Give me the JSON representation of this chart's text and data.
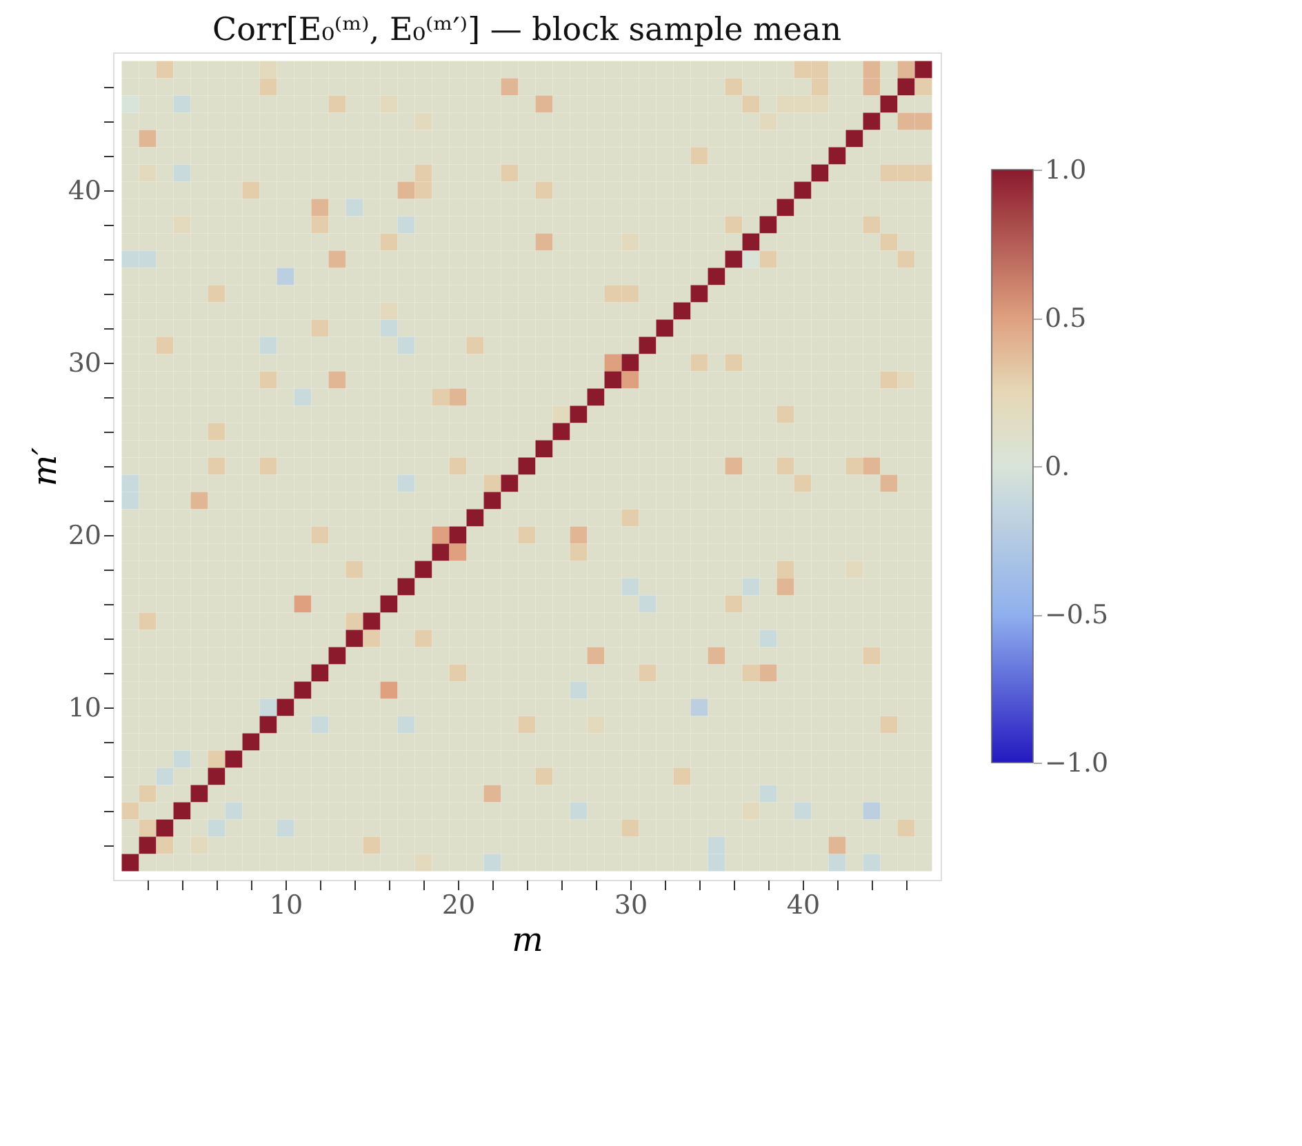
{
  "chart_data": {
    "type": "heatmap",
    "title": "Corr[E₀⁽ᵐ⁾, E₀⁽ᵐ′⁾] — block sample mean",
    "xlabel": "m",
    "ylabel": "m′",
    "x": [
      1,
      2,
      3,
      4,
      5,
      6,
      7,
      8,
      9,
      10,
      11,
      12,
      13,
      14,
      15,
      16,
      17,
      18,
      19,
      20,
      21,
      22,
      23,
      24,
      25,
      26,
      27,
      28,
      29,
      30,
      31,
      32,
      33,
      34,
      35,
      36,
      37,
      38,
      39,
      40,
      41,
      42,
      43,
      44,
      45,
      46,
      47
    ],
    "y": [
      47,
      46,
      45,
      44,
      43,
      42,
      41,
      40,
      39,
      38,
      37,
      36,
      35,
      34,
      33,
      32,
      31,
      30,
      29,
      28,
      27,
      26,
      25,
      24,
      23,
      22,
      21,
      20,
      19,
      18,
      17,
      16,
      15,
      14,
      13,
      12,
      11,
      10,
      9,
      8,
      7,
      6,
      5,
      4,
      3,
      2,
      1
    ],
    "xlim": [
      0,
      48
    ],
    "ylim": [
      0,
      48
    ],
    "xticks": [
      {
        "value": 2,
        "label": null
      },
      {
        "value": 4,
        "label": null
      },
      {
        "value": 6,
        "label": null
      },
      {
        "value": 8,
        "label": null
      },
      10,
      {
        "value": 12,
        "label": null
      },
      {
        "value": 14,
        "label": null
      },
      {
        "value": 16,
        "label": null
      },
      {
        "value": 18,
        "label": null
      },
      20,
      {
        "value": 22,
        "label": null
      },
      {
        "value": 24,
        "label": null
      },
      {
        "value": 26,
        "label": null
      },
      {
        "value": 28,
        "label": null
      },
      30,
      {
        "value": 32,
        "label": null
      },
      {
        "value": 34,
        "label": null
      },
      {
        "value": 36,
        "label": null
      },
      {
        "value": 38,
        "label": null
      },
      40,
      {
        "value": 42,
        "label": null
      },
      {
        "value": 44,
        "label": null
      },
      {
        "value": 46,
        "label": null
      }
    ],
    "yticks": [
      {
        "value": 2,
        "label": null
      },
      {
        "value": 4,
        "label": null
      },
      {
        "value": 6,
        "label": null
      },
      {
        "value": 8,
        "label": null
      },
      10,
      {
        "value": 12,
        "label": null
      },
      {
        "value": 14,
        "label": null
      },
      {
        "value": 16,
        "label": null
      },
      {
        "value": 18,
        "label": null
      },
      20,
      {
        "value": 22,
        "label": null
      },
      {
        "value": 24,
        "label": null
      },
      {
        "value": 26,
        "label": null
      },
      {
        "value": 28,
        "label": null
      },
      30,
      {
        "value": 32,
        "label": null
      },
      {
        "value": 34,
        "label": null
      },
      {
        "value": 36,
        "label": null
      },
      {
        "value": 38,
        "label": null
      },
      40,
      {
        "value": 42,
        "label": null
      },
      {
        "value": 44,
        "label": null
      },
      {
        "value": 46,
        "label": null
      }
    ],
    "clim": [
      -1,
      1
    ],
    "cticks": [
      {
        "value": -1,
        "label": "−1.0"
      },
      {
        "value": -0.5,
        "label": "−0.5"
      },
      {
        "value": 0,
        "label": "0."
      },
      {
        "value": 0.5,
        "label": "0.5"
      },
      {
        "value": 1,
        "label": "1.0"
      }
    ],
    "cells": [
      [
        0.1,
        0.1,
        0.3,
        0.1,
        0.1,
        0.1,
        0.1,
        0.1,
        0.2,
        0.1,
        0.1,
        0.1,
        0.1,
        0.1,
        0.1,
        0.1,
        0.1,
        0.1,
        0.1,
        0.1,
        0.1,
        0.1,
        0.1,
        0.1,
        0.1,
        0.1,
        0.1,
        0.1,
        0.1,
        0.1,
        0.1,
        0.1,
        0.1,
        0.1,
        0.1,
        0.1,
        0.1,
        0.1,
        0.1,
        0.3,
        0.3,
        0.1,
        0.1,
        0.4,
        0.1,
        0.4,
        1
      ],
      [
        0.1,
        0.1,
        0.1,
        0.1,
        0.1,
        0.1,
        0.1,
        0.1,
        0.3,
        0.1,
        0.1,
        0.1,
        0.1,
        0.1,
        0.1,
        0.1,
        0.1,
        0.1,
        0.1,
        0.1,
        0.1,
        0.1,
        0.4,
        0.1,
        0.1,
        0.1,
        0.1,
        0.1,
        0.1,
        0.1,
        0.1,
        0.1,
        0.1,
        0.1,
        0.1,
        0.3,
        0.1,
        0.1,
        0.1,
        0.1,
        0.3,
        0.1,
        0.1,
        0.4,
        0.1,
        1,
        0.3
      ],
      [
        0,
        0.1,
        0.1,
        -0.1,
        0.1,
        0.1,
        0.1,
        0.1,
        0.1,
        0.1,
        0.1,
        0.1,
        0.3,
        0.1,
        0.1,
        0.2,
        0.1,
        0.1,
        0.1,
        0.1,
        0.1,
        0.1,
        0.1,
        0.1,
        0.4,
        0.1,
        0.1,
        0.1,
        0.1,
        0.1,
        0.1,
        0.1,
        0.1,
        0.1,
        0.1,
        0.1,
        0.3,
        0.1,
        0.2,
        0.2,
        0.2,
        0.1,
        0.1,
        0.1,
        1,
        0.1,
        0.1
      ],
      [
        0.1,
        0.1,
        0.1,
        0.1,
        0.1,
        0.1,
        0.1,
        0.1,
        0.1,
        0.1,
        0.1,
        0.1,
        0.1,
        0.1,
        0.1,
        0.1,
        0.1,
        0.2,
        0.1,
        0.1,
        0.1,
        0.1,
        0.1,
        0.1,
        0.1,
        0.1,
        0.1,
        0.1,
        0.1,
        0.1,
        0.1,
        0.1,
        0.1,
        0.1,
        0.1,
        0.1,
        0.1,
        0.2,
        0.1,
        0.1,
        0.1,
        0.1,
        0.1,
        1,
        0.1,
        0.4,
        0.4
      ],
      [
        0.1,
        0.4,
        0.1,
        0.1,
        0.1,
        0.1,
        0.1,
        0.1,
        0.1,
        0.1,
        0.1,
        0.1,
        0.1,
        0.1,
        0.1,
        0.1,
        0.1,
        0.1,
        0.1,
        0.1,
        0.1,
        0.1,
        0.1,
        0.1,
        0.1,
        0.1,
        0.1,
        0.1,
        0.1,
        0.1,
        0.1,
        0.1,
        0.1,
        0.1,
        0.1,
        0.1,
        0.1,
        0.1,
        0.1,
        0.1,
        0.1,
        0.1,
        1,
        0.1,
        0.1,
        0.1,
        0.1
      ],
      [
        0.1,
        0.1,
        0.1,
        0.1,
        0.1,
        0.1,
        0.1,
        0.1,
        0.1,
        0.1,
        0.1,
        0.1,
        0.1,
        0.1,
        0.1,
        0.1,
        0.1,
        0.1,
        0.1,
        0.1,
        0.1,
        0.1,
        0.1,
        0.1,
        0.1,
        0.1,
        0.1,
        0.1,
        0.1,
        0.1,
        0.1,
        0.1,
        0.1,
        0.3,
        0.1,
        0.1,
        0.1,
        0.1,
        0.1,
        0.1,
        0.1,
        1,
        0.1,
        0.1,
        0.1,
        0.1,
        0.1
      ],
      [
        0.1,
        0.2,
        0.1,
        -0.1,
        0.1,
        0.1,
        0.1,
        0.1,
        0.1,
        0.1,
        0.1,
        0.1,
        0.1,
        0.1,
        0.1,
        0.1,
        0.1,
        0.3,
        0.1,
        0.1,
        0.1,
        0.1,
        0.3,
        0.1,
        0.1,
        0.1,
        0.1,
        0.1,
        0.1,
        0.1,
        0.1,
        0.1,
        0.1,
        0.1,
        0.1,
        0.1,
        0.1,
        0.1,
        0.1,
        0.1,
        1,
        0.1,
        0.1,
        0.1,
        0.3,
        0.3,
        0.3
      ],
      [
        0.1,
        0.1,
        0.1,
        0.1,
        0.1,
        0.1,
        0.1,
        0.3,
        0.1,
        0.1,
        0.1,
        0.1,
        0.1,
        0.1,
        0.1,
        0.1,
        0.4,
        0.3,
        0.1,
        0.1,
        0.1,
        0.1,
        0.1,
        0.1,
        0.3,
        0.1,
        0.1,
        0.1,
        0.1,
        0.1,
        0.1,
        0.1,
        0.1,
        0.1,
        0.1,
        0.1,
        0.1,
        0.1,
        0.1,
        1,
        0.1,
        0.1,
        0.1,
        0.1,
        0.1,
        0.1,
        0.1
      ],
      [
        0.1,
        0.1,
        0.1,
        0.1,
        0.1,
        0.1,
        0.1,
        0.1,
        0.1,
        0.1,
        0.1,
        0.4,
        0.1,
        -0.1,
        0.1,
        0.1,
        0.1,
        0.1,
        0.1,
        0.1,
        0.1,
        0.1,
        0.1,
        0.1,
        0.1,
        0.1,
        0.1,
        0.1,
        0.1,
        0.1,
        0.1,
        0.1,
        0.1,
        0.1,
        0.1,
        0.1,
        0.1,
        0.1,
        1,
        0.1,
        0.1,
        0.1,
        0.1,
        0.1,
        0.1,
        0.1,
        0.1
      ],
      [
        0.1,
        0.1,
        0.1,
        0.2,
        0.1,
        0.1,
        0.1,
        0.1,
        0.1,
        0.1,
        0.1,
        0.3,
        0.1,
        0.1,
        0.1,
        0.1,
        -0.1,
        0.1,
        0.1,
        0.1,
        0.1,
        0.1,
        0.1,
        0.1,
        0.1,
        0.1,
        0.1,
        0.1,
        0.1,
        0.1,
        0.1,
        0.1,
        0.1,
        0.1,
        0.1,
        0.3,
        0.1,
        1,
        0.1,
        0.1,
        0.1,
        0.1,
        0.1,
        0.3,
        0.1,
        0.1,
        0.1
      ],
      [
        0.1,
        0.1,
        0.1,
        0.1,
        0.1,
        0.1,
        0.1,
        0.1,
        0.1,
        0.1,
        0.1,
        0.1,
        0.1,
        0.1,
        0.1,
        0.3,
        0.1,
        0.1,
        0.1,
        0.1,
        0.1,
        0.1,
        0.1,
        0.1,
        0.4,
        0.1,
        0.1,
        0.1,
        0.1,
        0.2,
        0.1,
        0.1,
        0.1,
        0.1,
        0.1,
        0.1,
        1,
        0.1,
        0.1,
        0.1,
        0.1,
        0.1,
        0.1,
        0.1,
        0.3,
        0.1,
        0.1
      ],
      [
        -0.1,
        -0.1,
        0.1,
        0.1,
        0.1,
        0.1,
        0.1,
        0.1,
        0.1,
        0.1,
        0.1,
        0.1,
        0.4,
        0.1,
        0.1,
        0.1,
        0.1,
        0.1,
        0.1,
        0.1,
        0.1,
        0.1,
        0.1,
        0.1,
        0.1,
        0.1,
        0.1,
        0.1,
        0.1,
        0.1,
        0.1,
        0.1,
        0.1,
        0.1,
        0.1,
        1,
        0,
        0.3,
        0.1,
        0.1,
        0.1,
        0.1,
        0.1,
        0.1,
        0.1,
        0.3,
        0.1
      ],
      [
        0.1,
        0.1,
        0.1,
        0.1,
        0.1,
        0.1,
        0.1,
        0.1,
        0.1,
        -0.2,
        0.1,
        0.1,
        0.1,
        0.1,
        0.1,
        0.1,
        0.1,
        0.1,
        0.1,
        0.1,
        0.1,
        0.1,
        0.1,
        0.1,
        0.1,
        0.1,
        0.1,
        0.1,
        0.1,
        0.1,
        0.1,
        0.1,
        0.1,
        0.1,
        1,
        0.1,
        0.1,
        0.1,
        0.1,
        0.1,
        0.1,
        0.1,
        0.1,
        0.1,
        0.1,
        0.1,
        0.1
      ],
      [
        0.1,
        0.1,
        0.1,
        0.1,
        0.1,
        0.3,
        0.1,
        0.1,
        0.1,
        0.1,
        0.1,
        0.1,
        0.1,
        0.1,
        0.1,
        0.1,
        0.1,
        0.1,
        0.1,
        0.1,
        0.1,
        0.1,
        0.1,
        0.1,
        0.1,
        0.1,
        0.1,
        0.1,
        0.3,
        0.3,
        0.1,
        0.1,
        0.1,
        1,
        0.1,
        0.1,
        0.1,
        0.1,
        0.1,
        0.1,
        0.1,
        0.1,
        0.1,
        0.1,
        0.1,
        0.1,
        0.1
      ],
      [
        0.1,
        0.1,
        0.1,
        0.1,
        0.1,
        0.1,
        0.1,
        0.1,
        0.1,
        0.1,
        0.1,
        0.1,
        0.1,
        0.1,
        0.1,
        0.2,
        0.1,
        0.1,
        0.1,
        0.1,
        0.1,
        0.1,
        0.1,
        0.1,
        0.1,
        0.1,
        0.1,
        0.1,
        0.1,
        0.1,
        0.1,
        0.1,
        1,
        0.1,
        0.1,
        0.1,
        0.1,
        0.1,
        0.1,
        0.1,
        0.1,
        0.1,
        0.1,
        0.1,
        0.1,
        0.1,
        0.1
      ],
      [
        0.1,
        0.1,
        0.1,
        0.1,
        0.1,
        0.1,
        0.1,
        0.1,
        0.1,
        0.1,
        0.1,
        0.3,
        0.1,
        0.1,
        0.1,
        -0.1,
        0.1,
        0.1,
        0.1,
        0.1,
        0.1,
        0.1,
        0.1,
        0.1,
        0.1,
        0.1,
        0.1,
        0.1,
        0.1,
        0.1,
        0.1,
        1,
        0.1,
        0.1,
        0.1,
        0.1,
        0.1,
        0.1,
        0.1,
        0.1,
        0.1,
        0.1,
        0.1,
        0.1,
        0.1,
        0.1,
        0.1
      ],
      [
        0.1,
        0.1,
        0.3,
        0.1,
        0.1,
        0.1,
        0.1,
        0.1,
        -0.1,
        0.1,
        0.1,
        0.1,
        0.1,
        0.1,
        0.1,
        0.1,
        -0.1,
        0.1,
        0.1,
        0.1,
        0.3,
        0.1,
        0.1,
        0.1,
        0.1,
        0.1,
        0.1,
        0.1,
        0.1,
        0.1,
        1,
        0.1,
        0.1,
        0.1,
        0.1,
        0.1,
        0.1,
        0.1,
        0.1,
        0.1,
        0.1,
        0.1,
        0.1,
        0.1,
        0.1,
        0.1,
        0.1
      ],
      [
        0.1,
        0.1,
        0.1,
        0.1,
        0.1,
        0.1,
        0.1,
        0.1,
        0.1,
        0.1,
        0.1,
        0.1,
        0.1,
        0.1,
        0.1,
        0.1,
        0.1,
        0.1,
        0.1,
        0.1,
        0.1,
        0.1,
        0.1,
        0.1,
        0.1,
        0.1,
        0.1,
        0.1,
        0.5,
        1,
        0.1,
        0.1,
        0.1,
        0.3,
        0.1,
        0.3,
        0.1,
        0.1,
        0.1,
        0.1,
        0.1,
        0.1,
        0.1,
        0.1,
        0.1,
        0.1,
        0.1
      ],
      [
        0.1,
        0.1,
        0.1,
        0.1,
        0.1,
        0.1,
        0.1,
        0.1,
        0.3,
        0.1,
        0.1,
        0.1,
        0.4,
        0.1,
        0.1,
        0.1,
        0.1,
        0.1,
        0.1,
        0.1,
        0.1,
        0.1,
        0.1,
        0.1,
        0.1,
        0.1,
        0.1,
        0.1,
        1,
        0.5,
        0.1,
        0.1,
        0.1,
        0.1,
        0.1,
        0.1,
        0.1,
        0.1,
        0.1,
        0.1,
        0.1,
        0.1,
        0.1,
        0.1,
        0.3,
        0.2,
        0.1
      ],
      [
        0.1,
        0.1,
        0.1,
        0.1,
        0.1,
        0.1,
        0.1,
        0.1,
        0.1,
        0.1,
        -0.1,
        0.1,
        0.1,
        0.1,
        0.1,
        0.1,
        0.1,
        0.1,
        0.3,
        0.4,
        0.1,
        0.1,
        0.1,
        0.1,
        0.1,
        0.1,
        0.1,
        1,
        0.1,
        0.1,
        0.1,
        0.1,
        0.1,
        0.1,
        0.1,
        0.1,
        0.1,
        0.1,
        0.1,
        0.1,
        0.1,
        0.1,
        0.1,
        0.1,
        0.1,
        0.1,
        0.1
      ],
      [
        0.1,
        0.1,
        0.1,
        0.1,
        0.1,
        0.1,
        0.1,
        0.1,
        0.1,
        0.1,
        0.1,
        0.1,
        0.1,
        0.1,
        0.1,
        0.1,
        0.1,
        0.1,
        0.1,
        0.1,
        0.1,
        0.1,
        0.1,
        0.1,
        0.1,
        0.2,
        1,
        0.1,
        0.1,
        0.1,
        0.1,
        0.1,
        0.1,
        0.1,
        0.1,
        0.1,
        0.1,
        0.1,
        0.3,
        0.1,
        0.1,
        0.1,
        0.1,
        0.1,
        0.1,
        0.1,
        0.1
      ],
      [
        0.1,
        0.1,
        0.1,
        0.1,
        0.1,
        0.3,
        0.1,
        0.1,
        0.1,
        0.1,
        0.1,
        0.1,
        0.1,
        0.1,
        0.1,
        0.1,
        0.1,
        0.1,
        0.1,
        0.1,
        0.1,
        0.1,
        0.1,
        0.1,
        0.1,
        1,
        0.1,
        0.1,
        0.1,
        0.1,
        0.1,
        0.1,
        0.1,
        0.1,
        0.1,
        0.1,
        0.1,
        0.1,
        0.1,
        0.1,
        0.1,
        0.1,
        0.1,
        0.1,
        0.1,
        0.1,
        0.1
      ],
      [
        0.1,
        0.1,
        0.1,
        0.1,
        0.1,
        0.1,
        0.1,
        0.1,
        0.1,
        0.1,
        0.1,
        0.1,
        0.1,
        0.1,
        0.1,
        0.1,
        0.1,
        0.1,
        0.1,
        0.1,
        0.1,
        0.1,
        0.1,
        0.1,
        1,
        0.1,
        0.1,
        0.1,
        0.1,
        0.1,
        0.1,
        0.1,
        0.1,
        0.1,
        0.1,
        0.1,
        0.1,
        0.1,
        0.1,
        0.1,
        0.1,
        0.1,
        0.1,
        0.1,
        0.1,
        0.1,
        0.1
      ],
      [
        0.1,
        0.1,
        0.1,
        0.1,
        0.1,
        0.3,
        0.1,
        0.1,
        0.3,
        0.1,
        0.1,
        0.1,
        0.1,
        0.1,
        0.1,
        0.1,
        0.1,
        0.1,
        0.1,
        0.3,
        0.1,
        0.1,
        0.1,
        1,
        0.1,
        0.1,
        0.1,
        0.1,
        0.1,
        0.1,
        0.1,
        0.1,
        0.1,
        0.1,
        0.1,
        0.4,
        0.1,
        0.1,
        0.3,
        0.1,
        0.1,
        0.1,
        0.3,
        0.4,
        0.1,
        0.1,
        0.1
      ],
      [
        -0.1,
        0.1,
        0.1,
        0.1,
        0.1,
        0.1,
        0.1,
        0.1,
        0.1,
        0.1,
        0.1,
        0.1,
        0.1,
        0.1,
        0.1,
        0.1,
        -0.1,
        0.1,
        0.1,
        0.1,
        0.1,
        0.3,
        1,
        0.1,
        0.1,
        0.1,
        0.1,
        0.1,
        0.1,
        0.1,
        0.1,
        0.1,
        0.1,
        0.1,
        0.1,
        0.1,
        0.1,
        0.1,
        0.1,
        0.3,
        0.1,
        0.1,
        0.1,
        0.1,
        0.4,
        0.1,
        0.1
      ],
      [
        -0.1,
        0.1,
        0.1,
        0.1,
        0.4,
        0.1,
        0.1,
        0.1,
        0.1,
        0.1,
        0.1,
        0.1,
        0.1,
        0.1,
        0.1,
        0.1,
        0.1,
        0.1,
        0.1,
        0.1,
        0.1,
        1,
        0.1,
        0.1,
        0.1,
        0.1,
        0.1,
        0.1,
        0.1,
        0.1,
        0.1,
        0.1,
        0.1,
        0.1,
        0.1,
        0.1,
        0.1,
        0.1,
        0.1,
        0.1,
        0.1,
        0.1,
        0.1,
        0.1,
        0.1,
        0.1,
        0.1
      ],
      [
        0.1,
        0.1,
        0.1,
        0.1,
        0.1,
        0.1,
        0.1,
        0.1,
        0.1,
        0.1,
        0.1,
        0.1,
        0.1,
        0.1,
        0.1,
        0.1,
        0.1,
        0.1,
        0.1,
        0.1,
        1,
        0.1,
        0.1,
        0.1,
        0.1,
        0.1,
        0.1,
        0.1,
        0.1,
        0.3,
        0.1,
        0.1,
        0.1,
        0.1,
        0.1,
        0.1,
        0.1,
        0.1,
        0.1,
        0.1,
        0.1,
        0.1,
        0.1,
        0.1,
        0.1,
        0.1,
        0.1
      ],
      [
        0.1,
        0.1,
        0.1,
        0.1,
        0.1,
        0.1,
        0.1,
        0.1,
        0.1,
        0.1,
        0.1,
        0.3,
        0.1,
        0.1,
        0.1,
        0.1,
        0.1,
        0.1,
        0.5,
        1,
        0.1,
        0.1,
        0.1,
        0.3,
        0.1,
        0.1,
        0.4,
        0.1,
        0.1,
        0.1,
        0.1,
        0.1,
        0.1,
        0.1,
        0.1,
        0.1,
        0.1,
        0.1,
        0.1,
        0.1,
        0.1,
        0.1,
        0.1,
        0.1,
        0.1,
        0.1,
        0.1
      ],
      [
        0.1,
        0.1,
        0.1,
        0.1,
        0.1,
        0.1,
        0.1,
        0.1,
        0.1,
        0.1,
        0.1,
        0.1,
        0.1,
        0.1,
        0.1,
        0.1,
        0.1,
        0.1,
        1,
        0.5,
        0.1,
        0.1,
        0.1,
        0.1,
        0.1,
        0.1,
        0.3,
        0.1,
        0.1,
        0.1,
        0.1,
        0.1,
        0.1,
        0.1,
        0.1,
        0.1,
        0.1,
        0.1,
        0.1,
        0.1,
        0.1,
        0.1,
        0.1,
        0.1,
        0.1,
        0.1,
        0.1
      ],
      [
        0.1,
        0.1,
        0.1,
        0.1,
        0.1,
        0.1,
        0.1,
        0.1,
        0.1,
        0.1,
        0.1,
        0.1,
        0.1,
        0.3,
        0.1,
        0.1,
        0.1,
        1,
        0.1,
        0.1,
        0.1,
        0.1,
        0.1,
        0.1,
        0.1,
        0.1,
        0.1,
        0.1,
        0.1,
        0.1,
        0.1,
        0.1,
        0.1,
        0.1,
        0.1,
        0.1,
        0.1,
        0.1,
        0.3,
        0.1,
        0.1,
        0.1,
        0.2,
        0.1,
        0.1,
        0.1,
        0.1
      ],
      [
        0.1,
        0.1,
        0.1,
        0.1,
        0.1,
        0.1,
        0.1,
        0.1,
        0.1,
        0.1,
        0.1,
        0.1,
        0.1,
        0.1,
        0.1,
        0.1,
        1,
        0.1,
        0.1,
        0.1,
        0.1,
        0.1,
        0.1,
        0.1,
        0.1,
        0.1,
        0.1,
        0.1,
        0.1,
        -0.1,
        0.1,
        0.1,
        0.1,
        0.1,
        0.1,
        0.1,
        -0.1,
        0.1,
        0.4,
        0.1,
        0.1,
        0.1,
        0.1,
        0.1,
        0.1,
        0.1,
        0.1
      ],
      [
        0.1,
        0.1,
        0.1,
        0.1,
        0.1,
        0.1,
        0.1,
        0.1,
        0.1,
        0.1,
        0.5,
        0.1,
        0.1,
        0.1,
        0.1,
        1,
        0.1,
        0.1,
        0.1,
        0.1,
        0.1,
        0.1,
        0.1,
        0.1,
        0.1,
        0.1,
        0.1,
        0.1,
        0.1,
        0.1,
        -0.1,
        0.1,
        0.1,
        0.1,
        0.1,
        0.3,
        0.1,
        0.1,
        0.1,
        0.1,
        0.1,
        0.1,
        0.1,
        0.1,
        0.1,
        0.1,
        0.1
      ],
      [
        0.1,
        0.3,
        0.1,
        0.1,
        0.1,
        0.1,
        0.1,
        0.1,
        0.1,
        0.1,
        0.1,
        0.1,
        0.1,
        0.3,
        1,
        0.1,
        0.1,
        0.1,
        0.1,
        0.1,
        0.1,
        0.1,
        0.1,
        0.1,
        0.1,
        0.1,
        0.1,
        0.1,
        0.1,
        0.1,
        0.1,
        0.1,
        0.1,
        0.1,
        0.1,
        0.1,
        0.1,
        0.1,
        0.1,
        0.1,
        0.1,
        0.1,
        0.1,
        0.1,
        0.1,
        0.1,
        0.1
      ],
      [
        0.1,
        0.1,
        0.1,
        0.1,
        0.1,
        0.1,
        0.1,
        0.1,
        0.1,
        0.1,
        0.1,
        0.1,
        0.1,
        1,
        0.3,
        0.1,
        0.1,
        0.3,
        0.1,
        0.1,
        0.1,
        0.1,
        0.1,
        0.1,
        0.1,
        0.1,
        0.1,
        0.1,
        0.1,
        0.1,
        0.1,
        0.1,
        0.1,
        0.1,
        0.1,
        0.1,
        0.1,
        -0.1,
        0.1,
        0.1,
        0.1,
        0.1,
        0.1,
        0.1,
        0.1,
        0.1,
        0.1
      ],
      [
        0.1,
        0.1,
        0.1,
        0.1,
        0.1,
        0.1,
        0.1,
        0.1,
        0.1,
        0.1,
        0.1,
        0.1,
        1,
        0.1,
        0.1,
        0.1,
        0.1,
        0.1,
        0.1,
        0.1,
        0.1,
        0.1,
        0.1,
        0.1,
        0.1,
        0.1,
        0.1,
        0.4,
        0.1,
        0.1,
        0.1,
        0.1,
        0.1,
        0.1,
        0.4,
        0.1,
        0.1,
        0.1,
        0.1,
        0.1,
        0.1,
        0.1,
        0.1,
        0.3,
        0.1,
        0.1,
        0.1
      ],
      [
        0.1,
        0.1,
        0.1,
        0.1,
        0.1,
        0.1,
        0.1,
        0.1,
        0.1,
        0.1,
        0.1,
        1,
        0.1,
        0.1,
        0.1,
        0.1,
        0.1,
        0.1,
        0.1,
        0.3,
        0.1,
        0.1,
        0.1,
        0.1,
        0.1,
        0.1,
        0.1,
        0.1,
        0.1,
        0.1,
        0.3,
        0.1,
        0.1,
        0.1,
        0.1,
        0.1,
        0.3,
        0.4,
        0.1,
        0.1,
        0.1,
        0.1,
        0.1,
        0.1,
        0.1,
        0.1,
        0.1
      ],
      [
        0.1,
        0.1,
        0.1,
        0.1,
        0.1,
        0.1,
        0.1,
        0.1,
        0.1,
        0.1,
        1,
        0.1,
        0.1,
        0.1,
        0.1,
        0.5,
        0.1,
        0.1,
        0.1,
        0.1,
        0.1,
        0.1,
        0.1,
        0.1,
        0.1,
        0.1,
        -0.1,
        0.1,
        0.1,
        0.1,
        0.1,
        0.1,
        0.1,
        0.1,
        0.1,
        0.1,
        0.1,
        0.1,
        0.1,
        0.1,
        0.1,
        0.1,
        0.1,
        0.1,
        0.1,
        0.1,
        0.1
      ],
      [
        0.1,
        0.1,
        0.1,
        0.1,
        0.1,
        0.1,
        0.1,
        0.1,
        -0.1,
        1,
        0.1,
        0.1,
        0.1,
        0.1,
        0.1,
        0.1,
        0.1,
        0.1,
        0.1,
        0.1,
        0.1,
        0.1,
        0.1,
        0.1,
        0.1,
        0.1,
        0.1,
        0.1,
        0.1,
        0.1,
        0.1,
        0.1,
        0.1,
        -0.2,
        0.1,
        0.1,
        0.1,
        0.1,
        0.1,
        0.1,
        0.1,
        0.1,
        0.1,
        0.1,
        0.1,
        0.1,
        0.1
      ],
      [
        0.1,
        0.1,
        0.1,
        0.1,
        0.1,
        0.1,
        0.1,
        0.1,
        1,
        0.1,
        0.1,
        -0.1,
        0.1,
        0.1,
        0.1,
        0.1,
        -0.1,
        0.1,
        0.1,
        0.1,
        0.1,
        0.1,
        0.1,
        0.3,
        0.1,
        0.1,
        0.1,
        0.2,
        0.1,
        0.1,
        0.1,
        0.1,
        0.1,
        0.1,
        0.1,
        0.1,
        0.1,
        0.1,
        0.1,
        0.1,
        0.1,
        0.1,
        0.1,
        0.1,
        0.3,
        0.1,
        0.1
      ],
      [
        0.1,
        0.1,
        0.1,
        0.1,
        0.1,
        0.1,
        0.1,
        1,
        0.1,
        0.1,
        0.1,
        0.1,
        0.1,
        0.1,
        0.1,
        0.1,
        0.1,
        0.1,
        0.1,
        0.1,
        0.1,
        0.1,
        0.1,
        0.1,
        0.1,
        0.1,
        0.1,
        0.1,
        0.1,
        0.1,
        0.1,
        0.1,
        0.1,
        0.1,
        0.1,
        0.1,
        0.1,
        0.1,
        0.1,
        0.1,
        0.1,
        0.1,
        0.1,
        0.1,
        0.1,
        0.1,
        0.1
      ],
      [
        0.1,
        0.1,
        0.1,
        -0.1,
        0.1,
        0.3,
        1,
        0.1,
        0.1,
        0.1,
        0.1,
        0.1,
        0.1,
        0.1,
        0.1,
        0.1,
        0.1,
        0.1,
        0.1,
        0.1,
        0.1,
        0.1,
        0.1,
        0.1,
        0.1,
        0.1,
        0.1,
        0.1,
        0.1,
        0.1,
        0.1,
        0.1,
        0.1,
        0.1,
        0.1,
        0.1,
        0.1,
        0.1,
        0.1,
        0.1,
        0.1,
        0.1,
        0.1,
        0.1,
        0.1,
        0.1,
        0.1
      ],
      [
        0.1,
        0.1,
        -0.1,
        0.1,
        0.1,
        1,
        0.1,
        0.1,
        0.1,
        0.1,
        0.1,
        0.1,
        0.1,
        0.1,
        0.1,
        0.1,
        0.1,
        0.1,
        0.1,
        0.1,
        0.1,
        0.1,
        0.1,
        0.1,
        0.3,
        0.1,
        0.1,
        0.1,
        0.1,
        0.1,
        0.1,
        0.1,
        0.3,
        0.1,
        0.1,
        0.1,
        0.1,
        0.1,
        0.1,
        0.1,
        0.1,
        0.1,
        0.1,
        0.1,
        0.1,
        0.1,
        0.1
      ],
      [
        0.1,
        0.3,
        0.1,
        0.1,
        1,
        0.1,
        0.1,
        0.1,
        0.1,
        0.1,
        0.1,
        0.1,
        0.1,
        0.1,
        0.1,
        0.1,
        0.1,
        0.1,
        0.1,
        0.1,
        0.1,
        0.4,
        0.1,
        0.1,
        0.1,
        0.1,
        0.1,
        0.1,
        0.1,
        0.1,
        0.1,
        0.1,
        0.1,
        0.1,
        0.1,
        0.1,
        0.1,
        -0.1,
        0.1,
        0.1,
        0.1,
        0.1,
        0.1,
        0.1,
        0.1,
        0.1,
        0.1
      ],
      [
        0.3,
        0.1,
        0.1,
        1,
        0.1,
        0.1,
        -0.1,
        0.1,
        0.1,
        0.1,
        0.1,
        0.1,
        0.1,
        0.1,
        0.1,
        0.1,
        0.1,
        0.1,
        0.1,
        0.1,
        0.1,
        0.1,
        0.1,
        0.1,
        0.1,
        0.1,
        -0.1,
        0.1,
        0.1,
        0.1,
        0.1,
        0.1,
        0.1,
        0.1,
        0.1,
        0.1,
        0.2,
        0.1,
        0.1,
        -0.1,
        0.1,
        0.1,
        0.1,
        -0.2,
        0.1,
        0.1,
        0.1
      ],
      [
        0.1,
        0.3,
        1,
        0.1,
        0.1,
        -0.1,
        0.1,
        0.1,
        0.1,
        -0.1,
        0.1,
        0.1,
        0.1,
        0.1,
        0.1,
        0.1,
        0.1,
        0.1,
        0.1,
        0.1,
        0.1,
        0.1,
        0.1,
        0.1,
        0.1,
        0.1,
        0.1,
        0.1,
        0.1,
        0.3,
        0.1,
        0.1,
        0.1,
        0.1,
        0.1,
        0.1,
        0.1,
        0.1,
        0.1,
        0.1,
        0.1,
        0.1,
        0.1,
        0.1,
        0.1,
        0.3,
        0.1
      ],
      [
        0.1,
        1,
        0.3,
        0.1,
        0.2,
        0.1,
        0.1,
        0.1,
        0.1,
        0.1,
        0.1,
        0.1,
        0.1,
        0.1,
        0.3,
        0.1,
        0.1,
        0.1,
        0.1,
        0.1,
        0.1,
        0.1,
        0.1,
        0.1,
        0.1,
        0.1,
        0.1,
        0.1,
        0.1,
        0.1,
        0.1,
        0.1,
        0.1,
        0.1,
        -0.1,
        0.1,
        0.1,
        0.1,
        0.1,
        0.1,
        0.1,
        0.4,
        0.1,
        0.1,
        0.1,
        0.1,
        0.1
      ],
      [
        1,
        0.1,
        0.1,
        0.1,
        0.1,
        0.1,
        0.1,
        0.1,
        0.1,
        0.1,
        0.1,
        0.1,
        0.1,
        0.1,
        0.1,
        0.1,
        0.1,
        0.2,
        0.1,
        0.1,
        0.1,
        -0.1,
        0.1,
        0.1,
        0.1,
        0.1,
        0.1,
        0.1,
        0.1,
        0.1,
        0.1,
        0.1,
        0.1,
        0.1,
        -0.1,
        0.1,
        0.1,
        0.1,
        0.1,
        0.1,
        0.1,
        -0.1,
        0.1,
        -0.1,
        0.1,
        0.1,
        0.1
      ]
    ]
  }
}
